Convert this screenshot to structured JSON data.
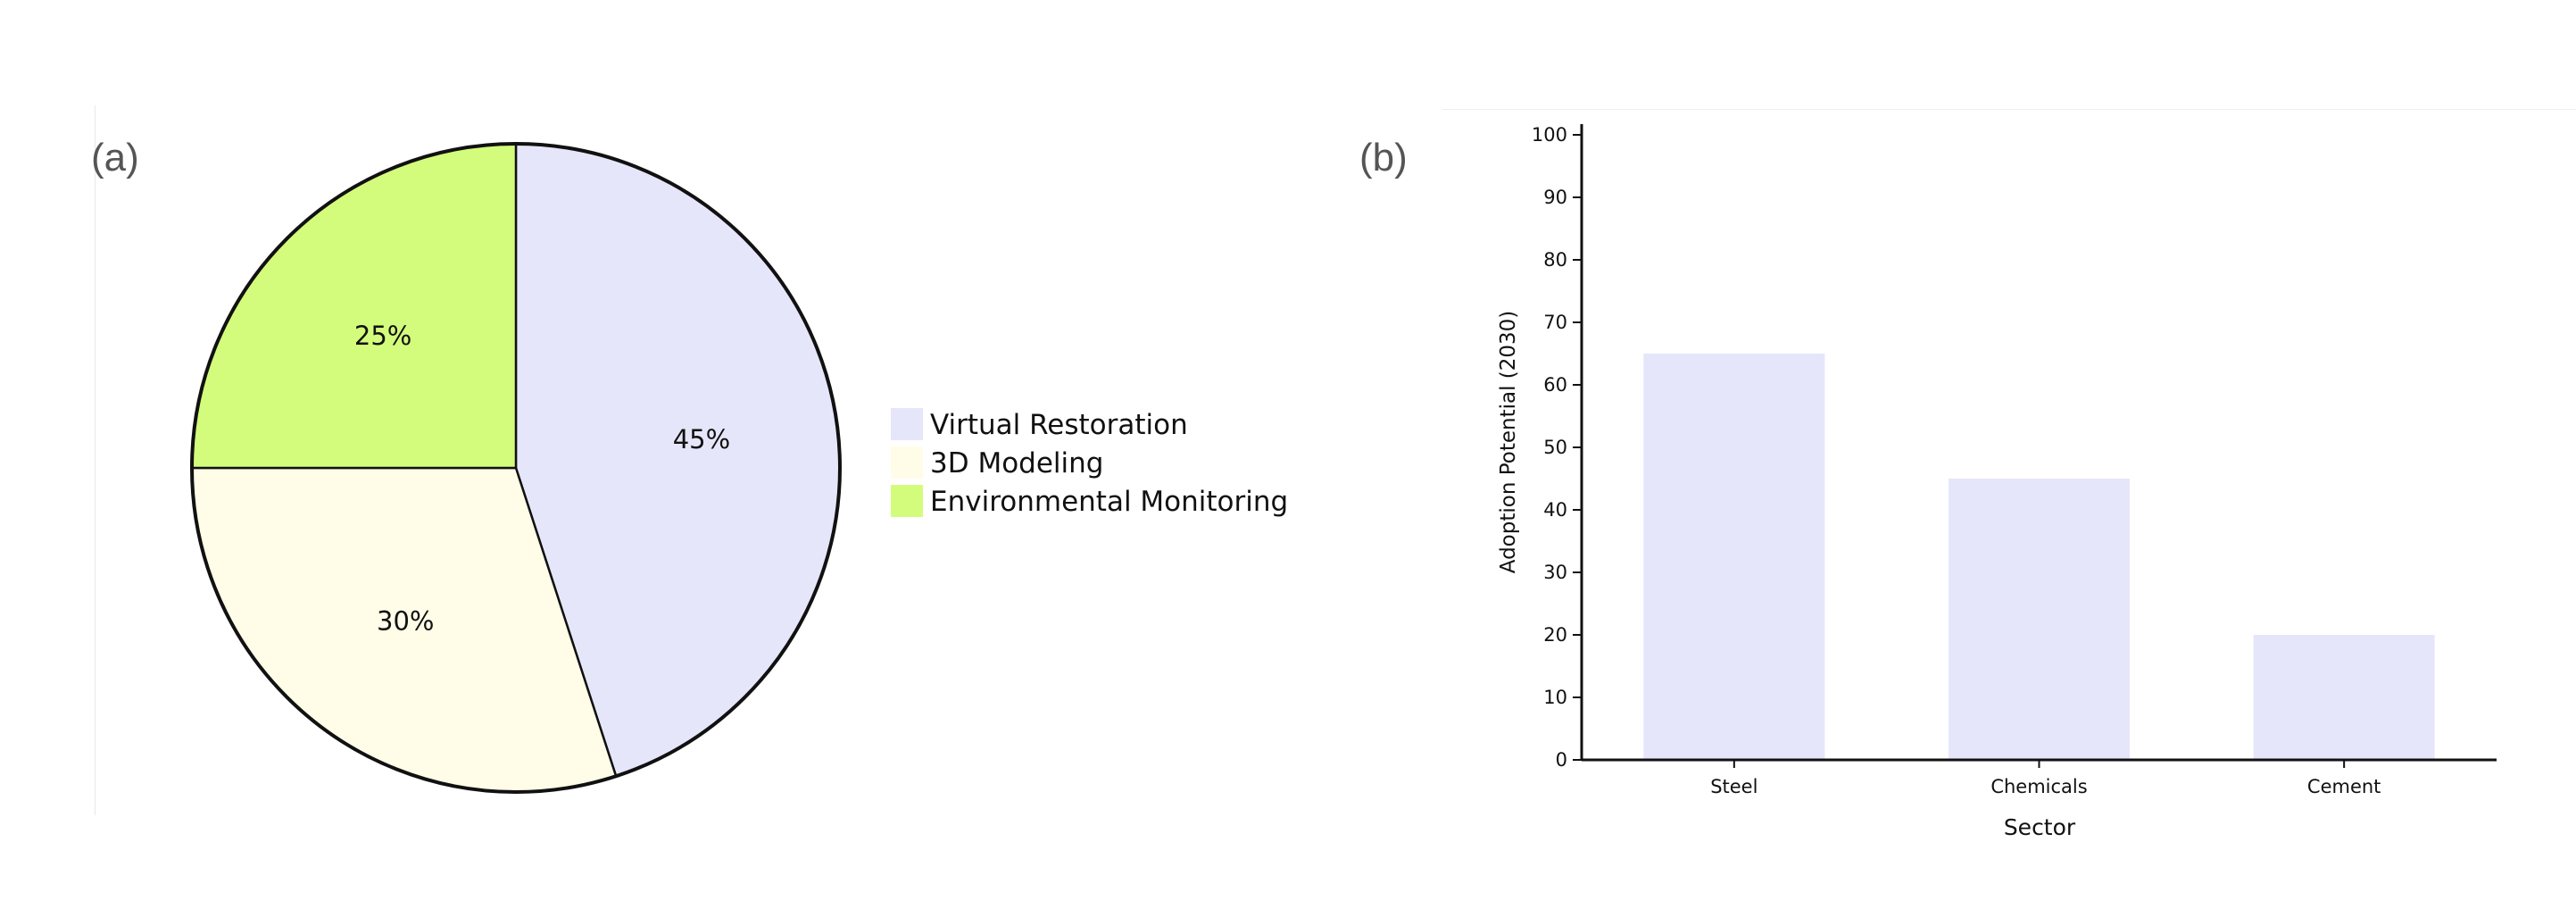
{
  "panels": {
    "a_label": "(a)",
    "b_label": "(b)"
  },
  "chart_data": [
    {
      "type": "pie",
      "panel": "(a)",
      "slices": [
        {
          "label": "Virtual Restoration",
          "value": 45,
          "display": "45%",
          "color": "#e6e6fa"
        },
        {
          "label": "3D Modeling",
          "value": 30,
          "display": "30%",
          "color": "#fffde8"
        },
        {
          "label": "Environmental Monitoring",
          "value": 25,
          "display": "25%",
          "color": "#d4fc7c"
        }
      ],
      "legend_position": "right",
      "outline_color": "#111111"
    },
    {
      "type": "bar",
      "panel": "(b)",
      "categories": [
        "Steel",
        "Chemicals",
        "Cement"
      ],
      "values": [
        65,
        45,
        20
      ],
      "xlabel": "Sector",
      "ylabel": "Adoption Potential (2030)",
      "ylim": [
        0,
        100
      ],
      "yticks": [
        "0",
        "10",
        "20",
        "30",
        "40",
        "50",
        "60",
        "70",
        "80",
        "90",
        "100"
      ],
      "bar_color": "#e6e6fa",
      "grid": false
    }
  ]
}
